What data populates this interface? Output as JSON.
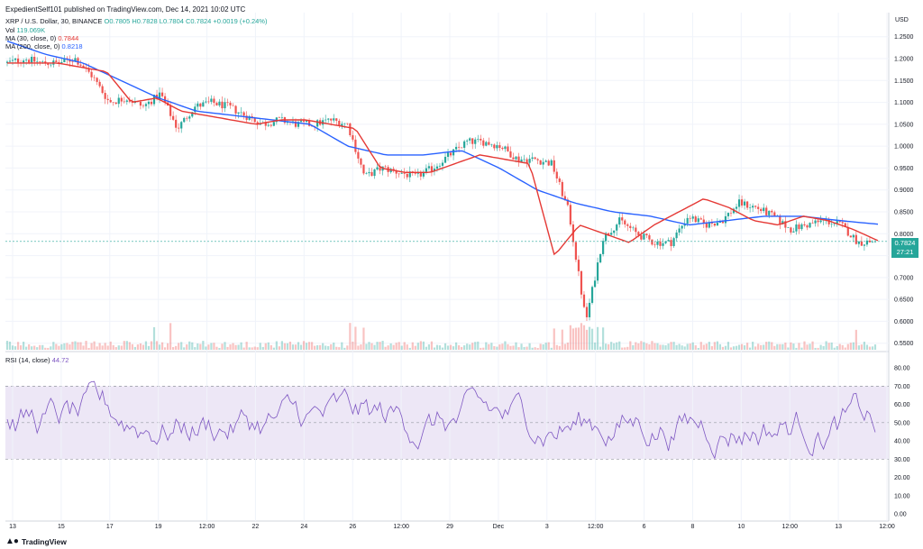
{
  "header": {
    "published": "ExpedientSelf101 published on TradingView.com, Dec 14, 2021 10:02 UTC"
  },
  "legend": {
    "symbol": "XRP / U.S. Dollar, 30, BINANCE",
    "ohlc": "O0.7805 H0.7828 L0.7804 C0.7824 +0.0019 (+0.24%)",
    "vol_label": "Vol",
    "vol_value": "119.069K",
    "ma30_label": "MA (30, close, 0)",
    "ma30_value": "0.7844",
    "ma200_label": "MA (200, close, 0)",
    "ma200_value": "0.8218",
    "rsi_label": "RSI (14, close)",
    "rsi_value": "44.72"
  },
  "price_tag": {
    "price": "0.7824",
    "countdown": "27:21"
  },
  "footer": {
    "brand": "TradingView"
  },
  "colors": {
    "up": "#26a69a",
    "down": "#ef5350",
    "ma30": "#e53935",
    "ma200": "#2962ff",
    "rsi": "#7e57c2",
    "rsi_band": "#ede7f6"
  },
  "chart_data": {
    "type": "candlestick",
    "currency": "USD",
    "price_axis": {
      "ylim": [
        0.535,
        1.305
      ],
      "ticks": [
        "1.2500",
        "1.2000",
        "1.1500",
        "1.1000",
        "1.0500",
        "1.0000",
        "0.9500",
        "0.9000",
        "0.8500",
        "0.8000",
        "0.7500",
        "0.7000",
        "0.6500",
        "0.6000",
        "0.5500"
      ]
    },
    "x_axis": {
      "ticks": [
        "13",
        "15",
        "17",
        "19",
        "12:00",
        "22",
        "24",
        "26",
        "12:00",
        "29",
        "Dec",
        "3",
        "12:00",
        "6",
        "8",
        "10",
        "12:00",
        "13",
        "12:00"
      ]
    },
    "close_anchors": [
      1.19,
      1.2,
      1.19,
      1.19,
      1.2,
      1.16,
      1.1,
      1.11,
      1.09,
      1.12,
      1.04,
      1.09,
      1.1,
      1.09,
      1.07,
      1.05,
      1.06,
      1.05,
      1.05,
      1.06,
      1.05,
      0.93,
      0.95,
      0.94,
      0.93,
      0.95,
      0.98,
      1.01,
      1.01,
      1.0,
      0.97,
      0.97,
      0.96,
      0.85,
      0.6,
      0.79,
      0.83,
      0.8,
      0.78,
      0.78,
      0.84,
      0.82,
      0.83,
      0.87,
      0.86,
      0.84,
      0.81,
      0.82,
      0.83,
      0.82,
      0.78,
      0.7824
    ],
    "ma30_anchors": [
      1.19,
      1.19,
      1.19,
      1.18,
      1.17,
      1.1,
      1.11,
      1.08,
      1.07,
      1.06,
      1.05,
      1.06,
      1.06,
      1.05,
      1.04,
      0.95,
      0.94,
      0.94,
      0.96,
      0.98,
      0.97,
      0.96,
      0.75,
      0.82,
      0.8,
      0.78,
      0.82,
      0.85,
      0.88,
      0.86,
      0.83,
      0.82,
      0.84,
      0.83,
      0.81,
      0.7844
    ],
    "ma200_anchors": [
      1.24,
      1.21,
      1.19,
      1.15,
      1.11,
      1.08,
      1.07,
      1.06,
      1.05,
      1.0,
      0.98,
      0.98,
      0.99,
      0.95,
      0.9,
      0.87,
      0.85,
      0.84,
      0.82,
      0.83,
      0.84,
      0.84,
      0.83,
      0.8218
    ],
    "rsi": {
      "label": "RSI (14, close)",
      "ylim": [
        0,
        85
      ],
      "overbought": 70,
      "oversold": 30,
      "mid": 50,
      "ticks": [
        "80.00",
        "70.00",
        "60.00",
        "50.00",
        "40.00",
        "30.00",
        "20.00",
        "10.00",
        "0.00"
      ],
      "last": 44.72
    }
  }
}
